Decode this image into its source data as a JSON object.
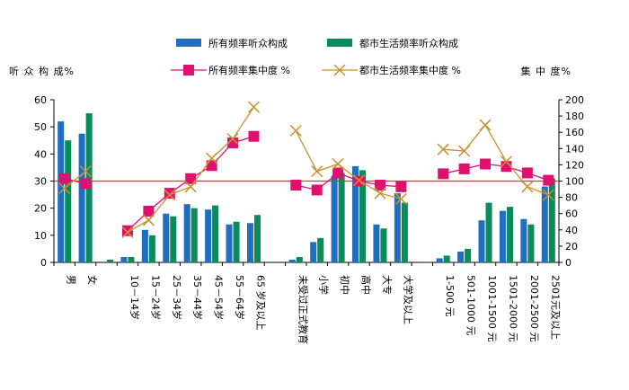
{
  "chart_data": {
    "type": "bar",
    "left_axis_label": "听 众 构 成%",
    "right_axis_label": "集 中 度%",
    "ylim_left": [
      0,
      60
    ],
    "yticks_left": [
      "0",
      "10",
      "20",
      "30",
      "40",
      "50",
      "60"
    ],
    "ylim_right": [
      0,
      200
    ],
    "yticks_right": [
      "0",
      "20",
      "40",
      "60",
      "80",
      "100",
      "120",
      "140",
      "160",
      "180",
      "200"
    ],
    "reference_line": {
      "axis": "right",
      "value": 100,
      "color": "#e0323c"
    },
    "categories": [
      "男",
      "女",
      "",
      "10－14岁",
      "15－24岁",
      "25－34岁",
      "35－44岁",
      "45－54岁",
      "55－64岁",
      "65 岁及以上",
      "",
      "未受过正式教育",
      "小学",
      "初中",
      "高中",
      "大专",
      "大学及以上",
      "",
      "1-500 元",
      "501-1000 元",
      "1001-1500 元",
      "1501-2000 元",
      "2001-2500 元",
      "2501元及以上"
    ],
    "series": [
      {
        "name": "所有频率听众构成",
        "kind": "bar",
        "axis": "left",
        "color": "#1f6fc0",
        "values": [
          52,
          47.5,
          null,
          2,
          12,
          18,
          21.5,
          19.5,
          14,
          14.5,
          null,
          1,
          7.5,
          32,
          35.5,
          14,
          25.5,
          null,
          1.5,
          4,
          15.5,
          19,
          16,
          28
        ]
      },
      {
        "name": "都市生活频率听众构成",
        "kind": "bar",
        "axis": "left",
        "color": "#0b8a5a",
        "values": [
          45,
          55,
          1,
          2,
          10,
          17,
          20,
          21,
          15,
          17.5,
          null,
          2,
          9,
          33,
          34,
          12.5,
          22,
          null,
          2.5,
          5,
          22,
          20.5,
          14,
          31
        ]
      },
      {
        "name": "所有频率集中度 %",
        "kind": "line",
        "axis": "right",
        "color": "#e0116e",
        "marker": "square",
        "values": [
          103,
          97,
          null,
          39,
          63,
          85,
          103,
          119,
          147,
          155,
          null,
          95,
          89,
          110,
          100,
          95,
          93,
          null,
          109,
          115,
          121,
          118,
          110,
          101
        ]
      },
      {
        "name": "都市生活频率集中度 %",
        "kind": "line",
        "axis": "right",
        "color": "#c8902e",
        "marker": "x",
        "values": [
          91,
          112,
          null,
          37,
          52,
          83,
          93,
          128,
          152,
          191,
          null,
          162,
          112,
          121,
          101,
          85,
          78,
          null,
          139,
          137,
          169,
          124,
          93,
          83
        ]
      }
    ],
    "legend_placement": "top",
    "grid": false
  }
}
